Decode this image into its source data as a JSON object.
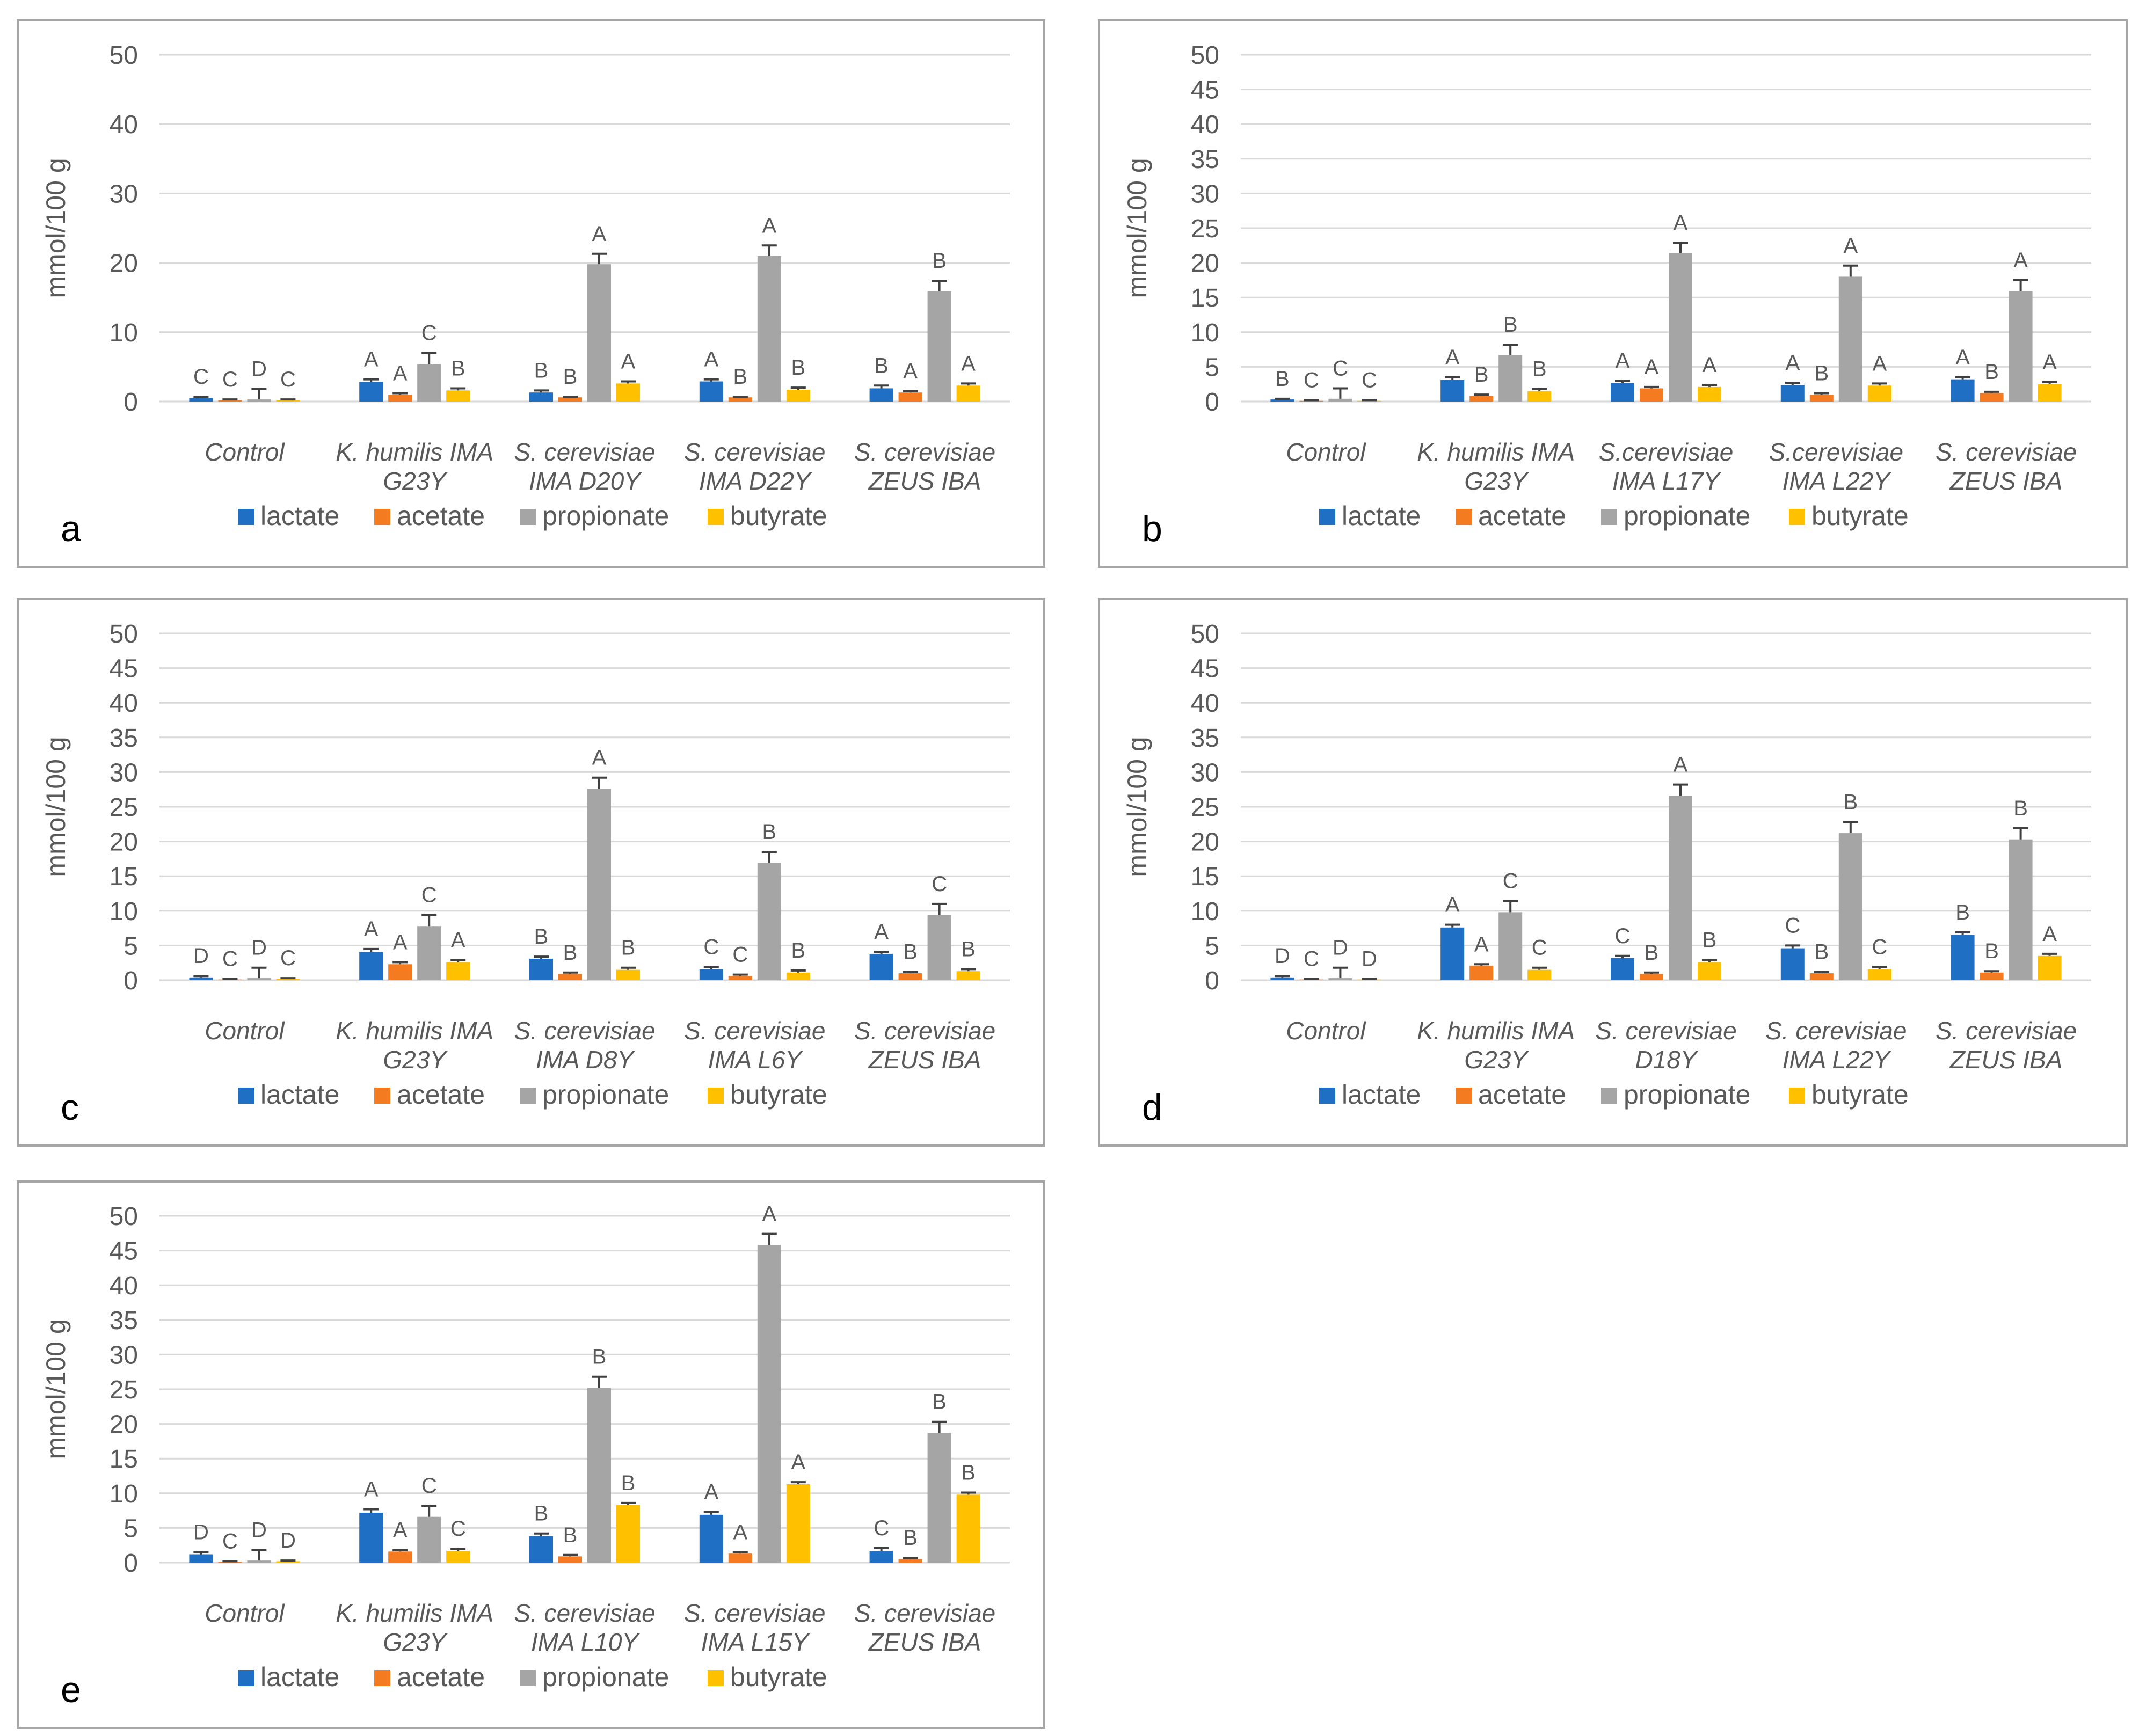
{
  "figure": {
    "series_names": [
      "lactate",
      "acetate",
      "propionate",
      "butyrate"
    ],
    "colors": {
      "lactate": "#1F6FC5",
      "acetate": "#F47B20",
      "propionate": "#A5A5A5",
      "butyrate": "#FFC000",
      "grid": "#D9D9D9",
      "axis_text": "#595959",
      "frame": "#A6A6A6"
    }
  },
  "chart_data": [
    {
      "type": "bar",
      "panel_label": "a",
      "ylabel": "mmol/100 g",
      "ylim": [
        0,
        50
      ],
      "yticks": [
        "0",
        "10",
        "20",
        "30",
        "40",
        "50"
      ],
      "categories": [
        [
          "Control"
        ],
        [
          "K. humilis IMA",
          "G23Y"
        ],
        [
          "S. cerevisiae",
          "IMA D20Y"
        ],
        [
          "S. cerevisiae",
          "IMA D22Y"
        ],
        [
          "S. cerevisiae",
          "ZEUS IBA"
        ]
      ],
      "legend": "bottom",
      "series": [
        {
          "name": "lactate",
          "values": [
            0.5,
            2.8,
            1.3,
            2.9,
            1.9
          ],
          "errors": [
            0.2,
            0.4,
            0.3,
            0.3,
            0.4
          ],
          "letters": [
            "C",
            "A",
            "B",
            "A",
            "B"
          ]
        },
        {
          "name": "acetate",
          "values": [
            0.2,
            1.0,
            0.6,
            0.6,
            1.3
          ],
          "errors": [
            0.1,
            0.2,
            0.1,
            0.1,
            0.2
          ],
          "letters": [
            "C",
            "A",
            "B",
            "B",
            "A"
          ]
        },
        {
          "name": "propionate",
          "values": [
            0.3,
            5.4,
            19.8,
            21.0,
            15.9
          ],
          "errors": [
            1.5,
            1.6,
            1.5,
            1.5,
            1.5
          ],
          "letters": [
            "D",
            "C",
            "A",
            "A",
            "B"
          ]
        },
        {
          "name": "butyrate",
          "values": [
            0.2,
            1.6,
            2.6,
            1.7,
            2.3
          ],
          "errors": [
            0.1,
            0.3,
            0.3,
            0.3,
            0.3
          ],
          "letters": [
            "C",
            "B",
            "A",
            "B",
            "A"
          ]
        }
      ]
    },
    {
      "type": "bar",
      "panel_label": "b",
      "ylabel": "mmol/100 g",
      "ylim": [
        0,
        50
      ],
      "yticks": [
        "0",
        "5",
        "10",
        "15",
        "20",
        "25",
        "30",
        "35",
        "40",
        "45",
        "50"
      ],
      "categories": [
        [
          "Control"
        ],
        [
          "K. humilis IMA",
          "G23Y"
        ],
        [
          "S.cerevisiae",
          "IMA L17Y"
        ],
        [
          "S.cerevisiae",
          "IMA L22Y"
        ],
        [
          "S. cerevisiae",
          "ZEUS IBA"
        ]
      ],
      "legend": "bottom",
      "series": [
        {
          "name": "lactate",
          "values": [
            0.3,
            3.1,
            2.7,
            2.4,
            3.2
          ],
          "errors": [
            0.1,
            0.4,
            0.3,
            0.3,
            0.3
          ],
          "letters": [
            "B",
            "A",
            "A",
            "A",
            "A"
          ]
        },
        {
          "name": "acetate",
          "values": [
            0.1,
            0.8,
            1.9,
            1.0,
            1.2
          ],
          "errors": [
            0.1,
            0.2,
            0.2,
            0.2,
            0.2
          ],
          "letters": [
            "C",
            "B",
            "A",
            "B",
            "B"
          ]
        },
        {
          "name": "propionate",
          "values": [
            0.4,
            6.7,
            21.4,
            18.0,
            15.9
          ],
          "errors": [
            1.5,
            1.5,
            1.5,
            1.6,
            1.6
          ],
          "letters": [
            "C",
            "B",
            "A",
            "A",
            "A"
          ]
        },
        {
          "name": "butyrate",
          "values": [
            0.1,
            1.5,
            2.1,
            2.3,
            2.5
          ],
          "errors": [
            0.1,
            0.3,
            0.3,
            0.3,
            0.3
          ],
          "letters": [
            "C",
            "B",
            "A",
            "A",
            "A"
          ]
        }
      ]
    },
    {
      "type": "bar",
      "panel_label": "c",
      "ylabel": "mmol/100 g",
      "ylim": [
        0,
        50
      ],
      "yticks": [
        "0",
        "5",
        "10",
        "15",
        "20",
        "25",
        "30",
        "35",
        "40",
        "45",
        "50"
      ],
      "categories": [
        [
          "Control"
        ],
        [
          "K. humilis IMA",
          "G23Y"
        ],
        [
          "S. cerevisiae",
          "IMA D8Y"
        ],
        [
          "S. cerevisiae",
          "IMA L6Y"
        ],
        [
          "S. cerevisiae",
          "ZEUS IBA"
        ]
      ],
      "legend": "bottom",
      "series": [
        {
          "name": "lactate",
          "values": [
            0.4,
            4.1,
            3.1,
            1.6,
            3.8
          ],
          "errors": [
            0.2,
            0.4,
            0.3,
            0.3,
            0.3
          ],
          "letters": [
            "D",
            "A",
            "B",
            "C",
            "A"
          ]
        },
        {
          "name": "acetate",
          "values": [
            0.1,
            2.3,
            0.9,
            0.6,
            1.0
          ],
          "errors": [
            0.1,
            0.3,
            0.2,
            0.2,
            0.2
          ],
          "letters": [
            "C",
            "A",
            "B",
            "C",
            "B"
          ]
        },
        {
          "name": "propionate",
          "values": [
            0.3,
            7.8,
            27.6,
            16.9,
            9.4
          ],
          "errors": [
            1.5,
            1.6,
            1.6,
            1.6,
            1.6
          ],
          "letters": [
            "D",
            "C",
            "A",
            "B",
            "C"
          ]
        },
        {
          "name": "butyrate",
          "values": [
            0.2,
            2.6,
            1.5,
            1.1,
            1.3
          ],
          "errors": [
            0.1,
            0.3,
            0.3,
            0.3,
            0.3
          ],
          "letters": [
            "C",
            "A",
            "B",
            "B",
            "B"
          ]
        }
      ]
    },
    {
      "type": "bar",
      "panel_label": "d",
      "ylabel": "mmol/100 g",
      "ylim": [
        0,
        50
      ],
      "yticks": [
        "0",
        "5",
        "10",
        "15",
        "20",
        "25",
        "30",
        "35",
        "40",
        "45",
        "50"
      ],
      "categories": [
        [
          "Control"
        ],
        [
          "K. humilis IMA",
          "G23Y"
        ],
        [
          "S. cerevisiae",
          "D18Y"
        ],
        [
          "S. cerevisiae",
          "IMA L22Y"
        ],
        [
          "S. cerevisiae",
          "ZEUS IBA"
        ]
      ],
      "legend": "bottom",
      "series": [
        {
          "name": "lactate",
          "values": [
            0.4,
            7.6,
            3.2,
            4.6,
            6.5
          ],
          "errors": [
            0.2,
            0.4,
            0.3,
            0.4,
            0.4
          ],
          "letters": [
            "D",
            "A",
            "C",
            "C",
            "B"
          ]
        },
        {
          "name": "acetate",
          "values": [
            0.1,
            2.1,
            0.9,
            1.0,
            1.1
          ],
          "errors": [
            0.1,
            0.2,
            0.2,
            0.2,
            0.2
          ],
          "letters": [
            "C",
            "A",
            "B",
            "B",
            "B"
          ]
        },
        {
          "name": "propionate",
          "values": [
            0.3,
            9.8,
            26.6,
            21.2,
            20.3
          ],
          "errors": [
            1.5,
            1.6,
            1.6,
            1.6,
            1.6
          ],
          "letters": [
            "D",
            "C",
            "A",
            "B",
            "B"
          ]
        },
        {
          "name": "butyrate",
          "values": [
            0.1,
            1.5,
            2.6,
            1.6,
            3.5
          ],
          "errors": [
            0.1,
            0.3,
            0.3,
            0.3,
            0.3
          ],
          "letters": [
            "D",
            "C",
            "B",
            "C",
            "A"
          ]
        }
      ]
    },
    {
      "type": "bar",
      "panel_label": "e",
      "ylabel": "mmol/100 g",
      "ylim": [
        0,
        50
      ],
      "yticks": [
        "0",
        "5",
        "10",
        "15",
        "20",
        "25",
        "30",
        "35",
        "40",
        "45",
        "50"
      ],
      "categories": [
        [
          "Control"
        ],
        [
          "K. humilis IMA",
          "G23Y"
        ],
        [
          "S. cerevisiae",
          "IMA L10Y"
        ],
        [
          "S. cerevisiae",
          "IMA L15Y"
        ],
        [
          "S. cerevisiae",
          "ZEUS IBA"
        ]
      ],
      "legend": "bottom",
      "series": [
        {
          "name": "lactate",
          "values": [
            1.2,
            7.2,
            3.8,
            6.9,
            1.7
          ],
          "errors": [
            0.3,
            0.5,
            0.4,
            0.4,
            0.4
          ],
          "letters": [
            "D",
            "A",
            "B",
            "A",
            "C"
          ]
        },
        {
          "name": "acetate",
          "values": [
            0.1,
            1.6,
            0.9,
            1.3,
            0.5
          ],
          "errors": [
            0.1,
            0.2,
            0.2,
            0.2,
            0.2
          ],
          "letters": [
            "C",
            "A",
            "B",
            "A",
            "B"
          ]
        },
        {
          "name": "propionate",
          "values": [
            0.3,
            6.6,
            25.2,
            45.8,
            18.7
          ],
          "errors": [
            1.5,
            1.6,
            1.6,
            1.6,
            1.6
          ],
          "letters": [
            "D",
            "C",
            "B",
            "A",
            "B"
          ]
        },
        {
          "name": "butyrate",
          "values": [
            0.2,
            1.7,
            8.3,
            11.3,
            9.8
          ],
          "errors": [
            0.1,
            0.3,
            0.3,
            0.3,
            0.3
          ],
          "letters": [
            "D",
            "C",
            "B",
            "A",
            "B"
          ]
        }
      ]
    }
  ]
}
